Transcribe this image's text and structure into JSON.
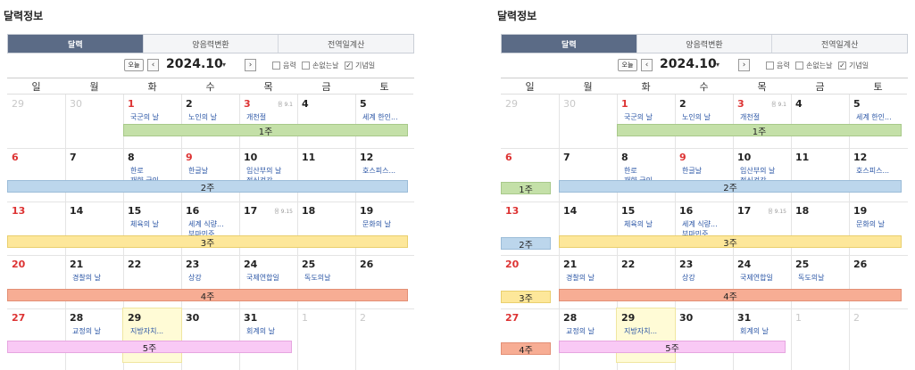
{
  "title": "달력정보",
  "tabs": [
    "달력",
    "양음력변환",
    "전역일계산"
  ],
  "today_btn": "오늘",
  "year_month": "2024.10",
  "checks": [
    {
      "label": "음력",
      "checked": false
    },
    {
      "label": "손없는날",
      "checked": false
    },
    {
      "label": "기념일",
      "checked": true
    }
  ],
  "weekdays": [
    "일",
    "월",
    "화",
    "수",
    "목",
    "금",
    "토"
  ],
  "weeks": [
    [
      {
        "day": "29",
        "muted": true
      },
      {
        "day": "30",
        "muted": true
      },
      {
        "day": "1",
        "red": true,
        "events": [
          {
            "t": "국군의 날",
            "red": true
          }
        ]
      },
      {
        "day": "2",
        "events": [
          {
            "t": "노인의 날"
          }
        ]
      },
      {
        "day": "3",
        "red": true,
        "lunar": "음 9.1",
        "events": [
          {
            "t": "개천절",
            "red": true
          }
        ]
      },
      {
        "day": "4"
      },
      {
        "day": "5",
        "events": [
          {
            "t": "세계 한인..."
          }
        ]
      }
    ],
    [
      {
        "day": "6",
        "red": true
      },
      {
        "day": "7"
      },
      {
        "day": "8",
        "events": [
          {
            "t": "한로"
          },
          {
            "t": "재향 군인..."
          }
        ]
      },
      {
        "day": "9",
        "red": true,
        "events": [
          {
            "t": "한글날",
            "red": true
          }
        ]
      },
      {
        "day": "10",
        "events": [
          {
            "t": "임산부의 날"
          },
          {
            "t": "정신건강..."
          }
        ]
      },
      {
        "day": "11"
      },
      {
        "day": "12",
        "events": [
          {
            "t": "호스피스..."
          }
        ]
      }
    ],
    [
      {
        "day": "13",
        "red": true
      },
      {
        "day": "14"
      },
      {
        "day": "15",
        "events": [
          {
            "t": "체육의 날"
          }
        ]
      },
      {
        "day": "16",
        "events": [
          {
            "t": "세계 식량..."
          },
          {
            "t": "부마민주..."
          }
        ]
      },
      {
        "day": "17",
        "lunar": "음 9.15"
      },
      {
        "day": "18"
      },
      {
        "day": "19",
        "events": [
          {
            "t": "문화의 날"
          }
        ]
      }
    ],
    [
      {
        "day": "20",
        "red": true
      },
      {
        "day": "21",
        "events": [
          {
            "t": "경찰의 날"
          }
        ]
      },
      {
        "day": "22"
      },
      {
        "day": "23",
        "events": [
          {
            "t": "상강"
          }
        ]
      },
      {
        "day": "24",
        "events": [
          {
            "t": "국제연합일"
          }
        ]
      },
      {
        "day": "25",
        "events": [
          {
            "t": "독도의날"
          }
        ]
      },
      {
        "day": "26"
      }
    ],
    [
      {
        "day": "27",
        "red": true
      },
      {
        "day": "28",
        "events": [
          {
            "t": "교정의 날"
          }
        ]
      },
      {
        "day": "29",
        "today": true,
        "events": [
          {
            "t": "지방자치..."
          }
        ]
      },
      {
        "day": "30"
      },
      {
        "day": "31",
        "events": [
          {
            "t": "회계의 날"
          }
        ]
      },
      {
        "day": "1",
        "muted": true
      },
      {
        "day": "2",
        "muted": true
      }
    ]
  ],
  "left_bars": [
    "1주",
    "2주",
    "3주",
    "4주",
    "5주"
  ],
  "right_bars": {
    "wide": [
      "1주",
      "2주",
      "3주",
      "4주",
      "5주"
    ],
    "small": [
      "1주",
      "2주",
      "3주",
      "4주"
    ]
  }
}
